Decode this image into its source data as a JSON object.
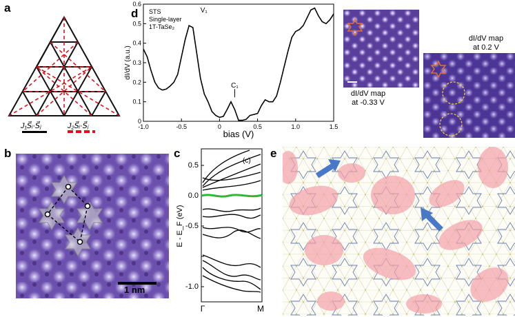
{
  "panels": {
    "a": {
      "label": "a",
      "legend_j1": "J₁S⃗ᵢ·S⃗ⱼ",
      "legend_j2": "J₂S⃗ᵢ·S⃗ⱼ"
    },
    "b": {
      "label": "b",
      "scalebar": "1 nm"
    },
    "c": {
      "label": "c",
      "tag": "(c)",
      "ylabel": "E - E_F (eV)",
      "xticks": [
        "Γ",
        "M"
      ],
      "yticks": [
        "0.5",
        "0.0",
        "-0.5",
        "-1.0"
      ]
    },
    "d": {
      "label": "d",
      "inset_title": [
        "STS",
        "Single-layer",
        "1T-TaSe₂"
      ],
      "peak_v1": "V₁",
      "peak_c1": "C₁",
      "map1_caption": [
        "dI/dV map",
        "at -0.33 V"
      ],
      "map2_caption": [
        "dI/dV map",
        "at 0.2 V"
      ]
    },
    "e": {
      "label": "e"
    }
  },
  "colors": {
    "stm_purple": "#5a3f9a",
    "red_dash": "#e0101a",
    "green_band": "#1fbf2a",
    "pink_blob": "#f2a0a8",
    "blue_arrow": "#4a78c8",
    "orange_star": "#e8702a",
    "yellow_circle": "#f0d030"
  },
  "chart_data": {
    "type": "line",
    "title": "STS Single-layer 1T-TaSe₂",
    "xlabel": "bias (V)",
    "ylabel": "dI/dV (a.u.)",
    "xlim": [
      -1.0,
      1.5
    ],
    "ylim": [
      0,
      0.6
    ],
    "xticks": [
      -1.0,
      -0.5,
      0,
      0.5,
      1.0,
      1.5
    ],
    "xtick_labels": [
      "-1.0",
      "-0.5",
      "0",
      "0.5",
      "1.0",
      "1.5"
    ],
    "yticks": [
      0,
      0.1,
      0.2,
      0.3,
      0.4,
      0.5,
      0.6
    ],
    "ytick_labels": [
      "0",
      "0.1",
      "0.2",
      "0.3",
      "0.4",
      "0.5",
      "0.6"
    ],
    "series": [
      {
        "name": "dI/dV",
        "x": [
          -1.0,
          -0.95,
          -0.9,
          -0.85,
          -0.8,
          -0.75,
          -0.7,
          -0.65,
          -0.6,
          -0.55,
          -0.5,
          -0.45,
          -0.4,
          -0.35,
          -0.3,
          -0.25,
          -0.2,
          -0.15,
          -0.1,
          -0.05,
          0.0,
          0.05,
          0.1,
          0.15,
          0.2,
          0.25,
          0.3,
          0.35,
          0.4,
          0.45,
          0.5,
          0.55,
          0.6,
          0.65,
          0.7,
          0.75,
          0.8,
          0.85,
          0.9,
          0.95,
          1.0,
          1.05,
          1.1,
          1.15,
          1.2,
          1.25,
          1.3,
          1.35,
          1.4,
          1.45,
          1.5
        ],
        "y": [
          0.37,
          0.33,
          0.26,
          0.2,
          0.17,
          0.16,
          0.165,
          0.18,
          0.2,
          0.24,
          0.33,
          0.42,
          0.49,
          0.48,
          0.35,
          0.22,
          0.14,
          0.1,
          0.05,
          0.03,
          0.02,
          0.025,
          0.06,
          0.1,
          0.06,
          0.005,
          0.005,
          0.01,
          0.03,
          0.035,
          0.04,
          0.08,
          0.11,
          0.1,
          0.1,
          0.13,
          0.2,
          0.28,
          0.36,
          0.43,
          0.46,
          0.47,
          0.49,
          0.53,
          0.57,
          0.58,
          0.54,
          0.51,
          0.5,
          0.52,
          0.55
        ]
      }
    ],
    "annotations": [
      {
        "text": "V₁",
        "x": -0.35,
        "y": 0.53
      },
      {
        "text": "C₁",
        "x": 0.2,
        "y": 0.13
      }
    ]
  }
}
